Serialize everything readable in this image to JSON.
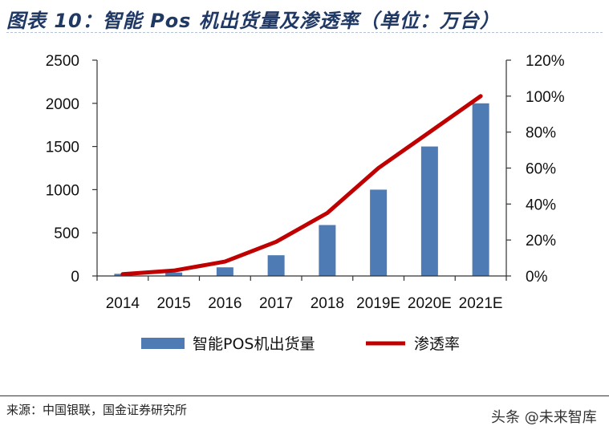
{
  "title": "图表 10：智能 Pos 机出货量及渗透率（单位：万台）",
  "source": "来源：中国银联，国金证券研究所",
  "watermark": "头条 @未来智库",
  "colors": {
    "bar": "#4e7bb4",
    "line": "#c00000",
    "title": "#1f3864"
  },
  "chart_data": {
    "type": "bar+line",
    "title": "",
    "categories": [
      "2014",
      "2015",
      "2016",
      "2017",
      "2018",
      "2019E",
      "2020E",
      "2021E"
    ],
    "series": [
      {
        "name": "智能POS机出货量",
        "type": "bar",
        "axis": "left",
        "values": [
          25,
          40,
          100,
          240,
          590,
          1000,
          1500,
          2000
        ]
      },
      {
        "name": "渗透率",
        "type": "line",
        "axis": "right",
        "values": [
          1,
          3,
          8,
          19,
          35,
          60,
          80,
          100
        ]
      }
    ],
    "left_axis": {
      "min": 0,
      "max": 2500,
      "step": 500,
      "ticks": [
        "0",
        "500",
        "1000",
        "1500",
        "2000",
        "2500"
      ]
    },
    "right_axis": {
      "min": 0,
      "max": 120,
      "step": 20,
      "unit": "%",
      "ticks": [
        "0%",
        "20%",
        "40%",
        "60%",
        "80%",
        "100%",
        "120%"
      ]
    },
    "grid": false,
    "legend_position": "bottom"
  }
}
